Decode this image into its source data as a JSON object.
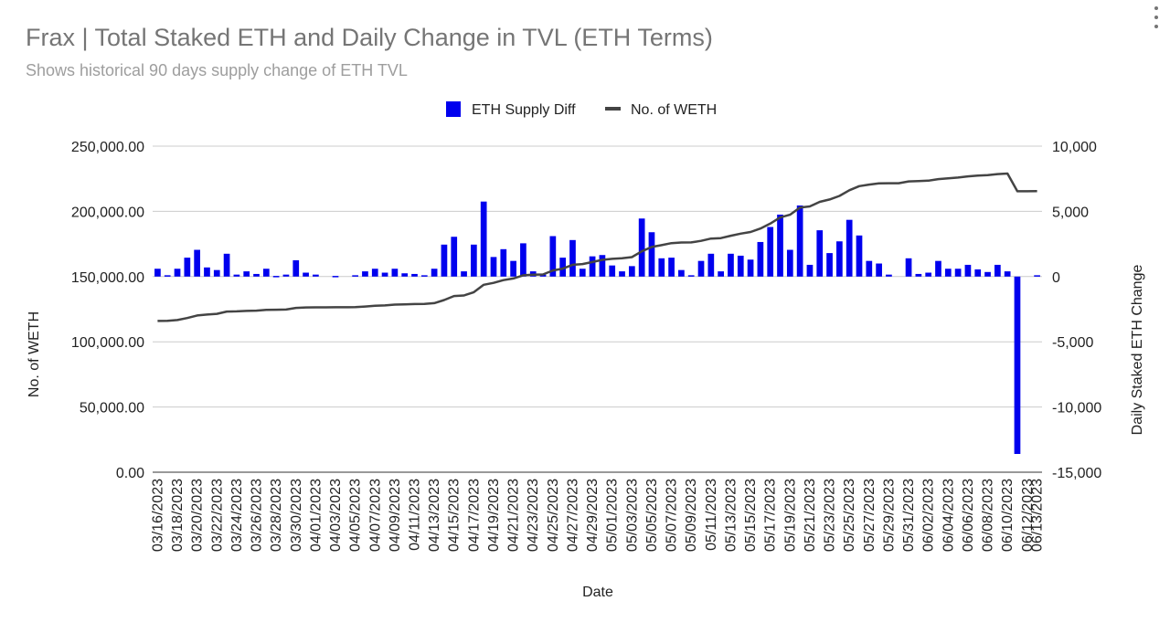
{
  "chart_data": {
    "type": "bar+line",
    "title": "Frax | Total Staked ETH and Daily Change in TVL (ETH Terms)",
    "subtitle": "Shows historical 90 days supply change of ETH TVL",
    "xlabel": "Date",
    "ylabel_left": "No. of WETH",
    "ylabel_right": "Daily Staked ETH Change",
    "ylim_left": [
      0,
      250000
    ],
    "ylim_right": [
      -15000,
      10000
    ],
    "yticks_left": [
      "250,000.00",
      "200,000.00",
      "150,000.00",
      "100,000.00",
      "50,000.00",
      "0.00"
    ],
    "yticks_right": [
      "10,000",
      "5,000",
      "0",
      "-5,000",
      "-10,000",
      "-15,000"
    ],
    "legend_position": "top",
    "grid": true,
    "x": [
      "03/16/2023",
      "03/17/2023",
      "03/18/2023",
      "03/19/2023",
      "03/20/2023",
      "03/21/2023",
      "03/22/2023",
      "03/23/2023",
      "03/24/2023",
      "03/25/2023",
      "03/26/2023",
      "03/27/2023",
      "03/28/2023",
      "03/29/2023",
      "03/30/2023",
      "03/31/2023",
      "04/01/2023",
      "04/02/2023",
      "04/03/2023",
      "04/04/2023",
      "04/05/2023",
      "04/06/2023",
      "04/07/2023",
      "04/08/2023",
      "04/09/2023",
      "04/10/2023",
      "04/11/2023",
      "04/12/2023",
      "04/13/2023",
      "04/14/2023",
      "04/15/2023",
      "04/16/2023",
      "04/17/2023",
      "04/18/2023",
      "04/19/2023",
      "04/20/2023",
      "04/21/2023",
      "04/22/2023",
      "04/23/2023",
      "04/24/2023",
      "04/25/2023",
      "04/26/2023",
      "04/27/2023",
      "04/28/2023",
      "04/29/2023",
      "04/30/2023",
      "05/01/2023",
      "05/02/2023",
      "05/03/2023",
      "05/04/2023",
      "05/05/2023",
      "05/06/2023",
      "05/07/2023",
      "05/08/2023",
      "05/09/2023",
      "05/10/2023",
      "05/11/2023",
      "05/12/2023",
      "05/13/2023",
      "05/14/2023",
      "05/15/2023",
      "05/16/2023",
      "05/17/2023",
      "05/18/2023",
      "05/19/2023",
      "05/20/2023",
      "05/21/2023",
      "05/22/2023",
      "05/23/2023",
      "05/24/2023",
      "05/25/2023",
      "05/26/2023",
      "05/27/2023",
      "05/28/2023",
      "05/29/2023",
      "05/30/2023",
      "05/31/2023",
      "06/01/2023",
      "06/02/2023",
      "06/03/2023",
      "06/04/2023",
      "06/05/2023",
      "06/06/2023",
      "06/07/2023",
      "06/08/2023",
      "06/09/2023",
      "06/10/2023",
      "06/11/2023",
      "06/12/2023",
      "06/13/2023"
    ],
    "xtick_labels": [
      "03/16/2023",
      "03/18/2023",
      "03/20/2023",
      "03/22/2023",
      "03/24/2023",
      "03/26/2023",
      "03/28/2023",
      "03/30/2023",
      "04/01/2023",
      "04/03/2023",
      "04/05/2023",
      "04/07/2023",
      "04/09/2023",
      "04/11/2023",
      "04/13/2023",
      "04/15/2023",
      "04/17/2023",
      "04/19/2023",
      "04/21/2023",
      "04/23/2023",
      "04/25/2023",
      "04/27/2023",
      "04/29/2023",
      "05/01/2023",
      "05/03/2023",
      "05/05/2023",
      "05/07/2023",
      "05/09/2023",
      "05/11/2023",
      "05/13/2023",
      "05/15/2023",
      "05/17/2023",
      "05/19/2023",
      "05/21/2023",
      "05/23/2023",
      "05/25/2023",
      "05/27/2023",
      "05/29/2023",
      "05/31/2023",
      "06/02/2023",
      "06/04/2023",
      "06/06/2023",
      "06/08/2023",
      "06/10/2023",
      "06/12/2023",
      "06/13/2023"
    ],
    "series": [
      {
        "name": "ETH Supply Diff",
        "axis": "right",
        "kind": "bar",
        "color": "#0000ee",
        "values": [
          600,
          100,
          600,
          1450,
          2050,
          700,
          500,
          1750,
          150,
          400,
          200,
          600,
          50,
          150,
          1250,
          300,
          150,
          0,
          50,
          0,
          100,
          400,
          600,
          300,
          600,
          250,
          200,
          100,
          600,
          2450,
          3050,
          400,
          2450,
          5750,
          1500,
          2100,
          1200,
          2550,
          400,
          150,
          3100,
          1450,
          2800,
          600,
          1550,
          1650,
          850,
          400,
          800,
          4450,
          3400,
          1400,
          1450,
          500,
          100,
          1200,
          1750,
          400,
          1750,
          1600,
          1300,
          2650,
          3800,
          4750,
          2050,
          5450,
          900,
          3550,
          1800,
          2700,
          4350,
          3150,
          1200,
          1000,
          150,
          0,
          1400,
          200,
          300,
          1200,
          600,
          600,
          900,
          550,
          350,
          900,
          400,
          -13600,
          0,
          100
        ]
      },
      {
        "name": "No. of WETH",
        "axis": "left",
        "kind": "line",
        "color": "#444444",
        "values": [
          116000,
          116100,
          116700,
          118200,
          120200,
          120900,
          121400,
          123200,
          123300,
          123700,
          123900,
          124500,
          124600,
          124700,
          126000,
          126300,
          126400,
          126400,
          126500,
          126500,
          126600,
          127000,
          127600,
          127900,
          128500,
          128700,
          128900,
          129000,
          129600,
          132000,
          135100,
          135500,
          138000,
          143700,
          145200,
          147300,
          148500,
          151000,
          151400,
          151600,
          154700,
          156100,
          159000,
          159600,
          161100,
          162800,
          163600,
          164000,
          164900,
          169300,
          172700,
          174100,
          175600,
          176100,
          176200,
          177400,
          179100,
          179500,
          181300,
          182900,
          184200,
          186800,
          190600,
          195300,
          197400,
          202900,
          203800,
          207300,
          209100,
          211800,
          216200,
          219300,
          220500,
          221500,
          221600,
          221600,
          223000,
          223200,
          223500,
          224700,
          225300,
          225900,
          226800,
          227400,
          227700,
          228600,
          229000,
          215400,
          215400,
          215500
        ]
      }
    ]
  }
}
